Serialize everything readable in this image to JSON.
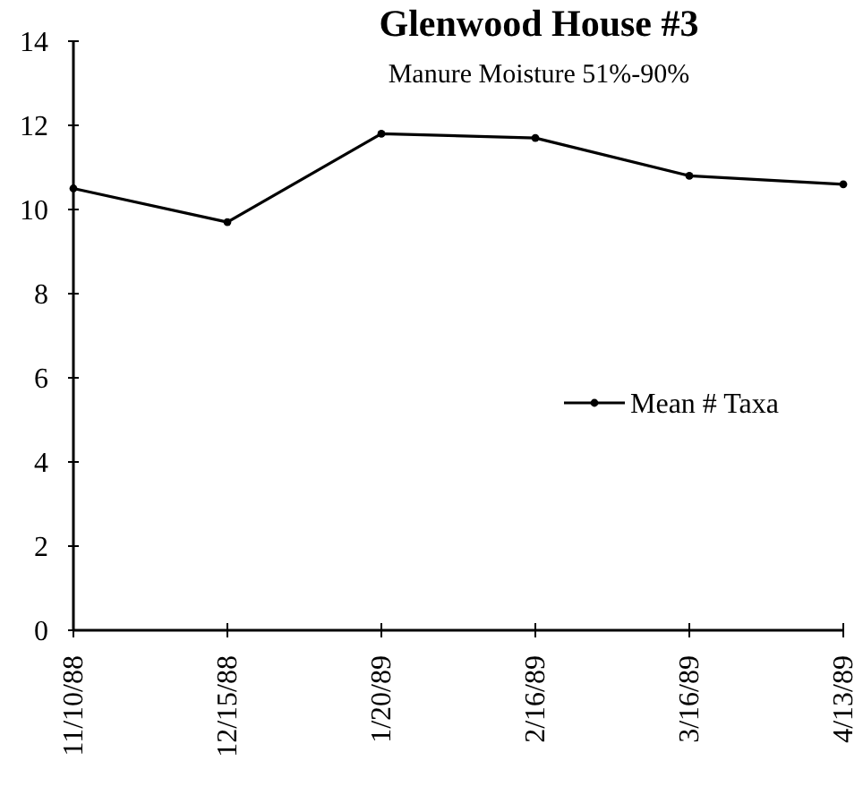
{
  "chart_data": {
    "type": "line",
    "title": "Glenwood  House #3",
    "subtitle": "Manure Moisture 51%-90%",
    "categories": [
      "11/10/88",
      "12/15/88",
      "1/20/89",
      "2/16/89",
      "3/16/89",
      "4/13/89"
    ],
    "series": [
      {
        "name": "Mean # Taxa",
        "color": "#000000",
        "values": [
          10.5,
          9.7,
          11.8,
          11.7,
          10.8,
          10.6
        ]
      }
    ],
    "ylim": [
      0,
      14
    ],
    "yticks": [
      0,
      2,
      4,
      6,
      8,
      10,
      12,
      14
    ],
    "grid": false,
    "legend": "right",
    "marker": "circle",
    "line_style": "solid"
  }
}
